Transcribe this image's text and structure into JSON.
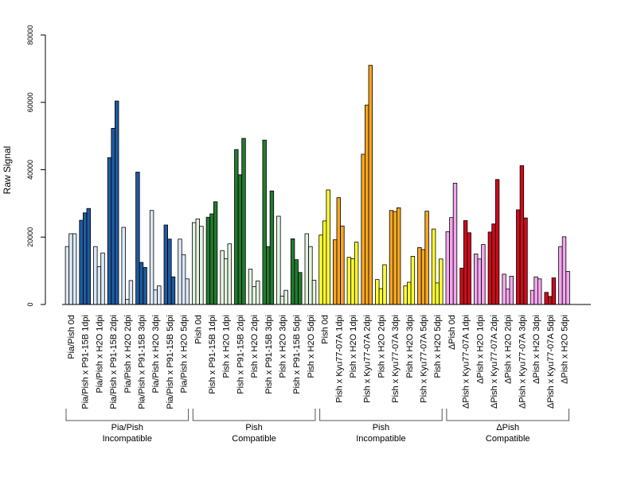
{
  "chart_data": {
    "type": "bar",
    "ylabel": "Raw Signal",
    "ylim": [
      0,
      80000
    ],
    "yticks": [
      0,
      20000,
      40000,
      60000,
      80000
    ],
    "groups": [
      {
        "label_line1": "Pia/Pish",
        "label_line2": "Incompatible",
        "categories": [
          {
            "name": "Pia/Pish 0d",
            "values": [
              17200,
              21000,
              21000
            ],
            "color": "#dce9f7"
          },
          {
            "name": "Pia/Pish x P91-15B 1dpi",
            "values": [
              25000,
              27200,
              28500
            ],
            "color": "#1f5aa0"
          },
          {
            "name": "Pia/Pish x H2O 1dpi",
            "values": [
              17200,
              11200,
              15300
            ],
            "color": "#dce9f7"
          },
          {
            "name": "Pia/Pish x P91-15B 2dpi",
            "values": [
              43600,
              52300,
              60400
            ],
            "color": "#1f5aa0"
          },
          {
            "name": "Pia/Pish x H2O 2dpi",
            "values": [
              22900,
              1500,
              7100
            ],
            "color": "#dce9f7"
          },
          {
            "name": "Pia/Pish x P91-15B 3dpi",
            "values": [
              39300,
              12500,
              11000
            ],
            "color": "#1f5aa0"
          },
          {
            "name": "Pia/Pish x H2O 3dpi",
            "values": [
              27900,
              4300,
              5500
            ],
            "color": "#dce9f7"
          },
          {
            "name": "Pia/Pish x P91-15B 5dpi",
            "values": [
              23600,
              19400,
              8200
            ],
            "color": "#1f5aa0"
          },
          {
            "name": "Pia/Pish x H2O 5dpi",
            "values": [
              19400,
              14800,
              7600
            ],
            "color": "#dce9f7"
          }
        ]
      },
      {
        "label_line1": "Pish",
        "label_line2": "Compatible",
        "categories": [
          {
            "name": "Pish 0d",
            "values": [
              24300,
              25400,
              23200
            ],
            "color": "#e3f3df"
          },
          {
            "name": "Pish x P91-15B 1dpi",
            "values": [
              25900,
              26900,
              30500
            ],
            "color": "#237a2f"
          },
          {
            "name": "Pish x H2O 1dpi",
            "values": [
              16000,
              13600,
              18000
            ],
            "color": "#e3f3df"
          },
          {
            "name": "Pish x P91-15B 2dpi",
            "values": [
              46000,
              38500,
              49300
            ],
            "color": "#237a2f"
          },
          {
            "name": "Pish x H2O 2dpi",
            "values": [
              10500,
              5300,
              7000
            ],
            "color": "#e3f3df"
          },
          {
            "name": "Pish x P91-15B 3dpi",
            "values": [
              48800,
              17200,
              33700
            ],
            "color": "#237a2f"
          },
          {
            "name": "Pish x H2O 3dpi",
            "values": [
              26200,
              2500,
              4200
            ],
            "color": "#e3f3df"
          },
          {
            "name": "Pish x P91-15B 5dpi",
            "values": [
              19500,
              13300,
              9500
            ],
            "color": "#237a2f"
          },
          {
            "name": "Pish x H2O 5dpi",
            "values": [
              21000,
              17200,
              7200
            ],
            "color": "#e3f3df"
          }
        ]
      },
      {
        "label_line1": "Pish",
        "label_line2": "Incompatible",
        "categories": [
          {
            "name": "Pish 0d",
            "values": [
              20600,
              24800,
              34000
            ],
            "color": "#ffff33"
          },
          {
            "name": "Pish x Kyu77-07A 1dpi",
            "values": [
              19200,
              31700,
              23300
            ],
            "color": "#f5a623"
          },
          {
            "name": "Pish x H2O 1dpi",
            "values": [
              14000,
              13600,
              18500
            ],
            "color": "#ffff33"
          },
          {
            "name": "Pish x Kyu77-07A 2dpi",
            "values": [
              44600,
              59200,
              71000
            ],
            "color": "#f5a623"
          },
          {
            "name": "Pish x H2O 2dpi",
            "values": [
              7400,
              4700,
              11800
            ],
            "color": "#ffff33"
          },
          {
            "name": "Pish x Kyu77-07A 3dpi",
            "values": [
              27900,
              27600,
              28700
            ],
            "color": "#f5a623"
          },
          {
            "name": "Pish x H2O 3dpi",
            "values": [
              5500,
              6600,
              14300
            ],
            "color": "#ffff33"
          },
          {
            "name": "Pish x Kyu77-07A 5dpi",
            "values": [
              16900,
              16300,
              27700
            ],
            "color": "#f5a623"
          },
          {
            "name": "Pish x H2O 5dpi",
            "values": [
              22400,
              6400,
              13500
            ],
            "color": "#ffff33"
          }
        ]
      },
      {
        "label_line1": "ΔPish",
        "label_line2": "Compatible",
        "categories": [
          {
            "name": "ΔPish 0d",
            "values": [
              21600,
              25800,
              36000
            ],
            "color": "#f4a6ee"
          },
          {
            "name": "ΔPish x Kyu77-07A 1dpi",
            "values": [
              10800,
              24900,
              21300
            ],
            "color": "#cc0c1c"
          },
          {
            "name": "ΔPish x H2O 1dpi",
            "values": [
              15000,
              13500,
              17800
            ],
            "color": "#f4a6ee"
          },
          {
            "name": "ΔPish x Kyu77-07A 2dpi",
            "values": [
              21500,
              23900,
              37100
            ],
            "color": "#cc0c1c"
          },
          {
            "name": "ΔPish x H2O 2dpi",
            "values": [
              9000,
              4600,
              8400
            ],
            "color": "#f4a6ee"
          },
          {
            "name": "ΔPish x Kyu77-07A 3dpi",
            "values": [
              28100,
              41200,
              25700
            ],
            "color": "#cc0c1c"
          },
          {
            "name": "ΔPish x H2O 3dpi",
            "values": [
              4200,
              8200,
              7600
            ],
            "color": "#f4a6ee"
          },
          {
            "name": "ΔPish x Kyu77-07A 5dpi",
            "values": [
              3600,
              2400,
              7900
            ],
            "color": "#cc0c1c"
          },
          {
            "name": "ΔPish x H2O 5dpi",
            "values": [
              17200,
              20100,
              9800
            ],
            "color": "#f4a6ee"
          }
        ]
      }
    ]
  }
}
